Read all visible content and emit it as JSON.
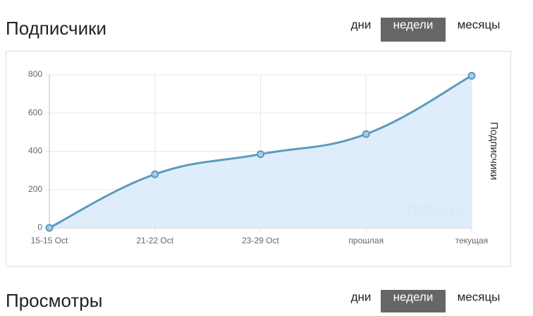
{
  "sections": [
    {
      "title": "Подписчики",
      "tabs": [
        "дни",
        "недели",
        "месяцы"
      ],
      "active_tab": 1
    },
    {
      "title": "Просмотры",
      "tabs": [
        "дни",
        "недели",
        "месяцы"
      ],
      "active_tab": 1
    }
  ],
  "chart_data": {
    "type": "line",
    "categories": [
      "15-15 Oct",
      "21-22 Oct",
      "23-29 Oct",
      "прошлая",
      "текущая"
    ],
    "series": [
      {
        "color": "#5b9bc0",
        "fill": "#dcebfb",
        "values": [
          0,
          280,
          385,
          490,
          795
        ]
      }
    ],
    "ylabel": "Подписчики",
    "watermark": "TGStat.ru",
    "ylim": [
      0,
      800
    ],
    "yticks": [
      0,
      200,
      400,
      600,
      800
    ],
    "grid": true
  }
}
